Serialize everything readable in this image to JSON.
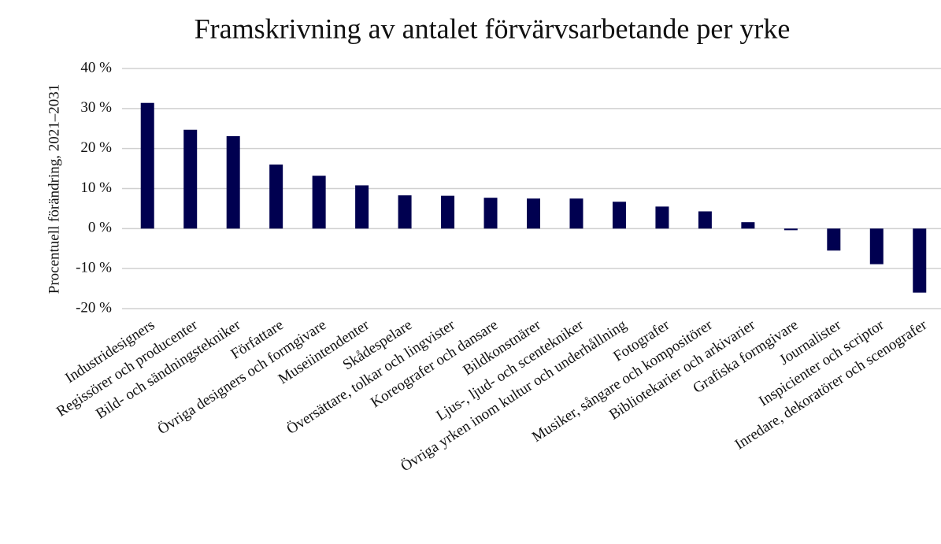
{
  "chart_data": {
    "type": "bar",
    "title": "Framskrivning av antalet förvärvsarbetande per yrke",
    "y_label": "Procentuell förändring, 2021–2031",
    "categories": [
      "Industridesigners",
      "Regissörer och producenter",
      "Bild- och sändningstekniker",
      "Författare",
      "Övriga designers och formgivare",
      "Museiintendenter",
      "Skådespelare",
      "Översättare, tolkar och lingvister",
      "Koreografer och dansare",
      "Bildkonstnärer",
      "Ljus-, ljud- och scentekniker",
      "Övriga yrken inom kultur och underhållning",
      "Fotografer",
      "Musiker, sångare och kompositörer",
      "Bibliotekarier och arkivarier",
      "Grafiska formgivare",
      "Journalister",
      "Inspicienter och scriptor",
      "Inredare, dekoratörer och scenografer"
    ],
    "values": [
      31.4,
      24.7,
      23.1,
      16,
      13.2,
      10.8,
      8.3,
      8.2,
      7.7,
      7.5,
      7.5,
      6.7,
      5.5,
      4.3,
      1.6,
      -0.4,
      -5.5,
      -8.9,
      -16
    ],
    "color": "#000050",
    "ylim": [
      -20,
      40
    ],
    "yticks": [
      {
        "value": -20,
        "label": "-20 %"
      },
      {
        "value": -10,
        "label": "-10 %"
      },
      {
        "value": 0,
        "label": "0 %"
      },
      {
        "value": 10,
        "label": "10 %"
      },
      {
        "value": 20,
        "label": "20 %"
      },
      {
        "value": 30,
        "label": "30 %"
      },
      {
        "value": 40,
        "label": "40 %"
      }
    ],
    "grid": true
  }
}
